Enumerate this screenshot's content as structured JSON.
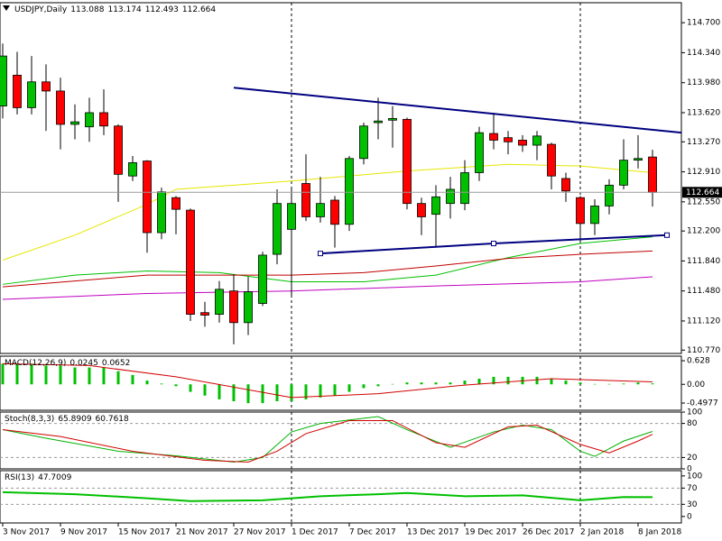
{
  "chart_data": [
    {
      "type": "candlestick",
      "title": "USDJPY,Daily",
      "categories": [
        "3 Nov 2017",
        null,
        null,
        null,
        "9 Nov 2017",
        null,
        null,
        null,
        "15 Nov 2017",
        null,
        null,
        null,
        "21 Nov 2017",
        null,
        null,
        null,
        "27 Nov 2017",
        null,
        null,
        null,
        "1 Dec 2017",
        null,
        null,
        null,
        "7 Dec 2017",
        null,
        null,
        null,
        "13 Dec 2017",
        null,
        null,
        null,
        "19 Dec 2017",
        null,
        null,
        null,
        "26 Dec 2017",
        null,
        null,
        null,
        "2 Jan 2018",
        null,
        null,
        null,
        "8 Jan 2018",
        null
      ],
      "open": [
        113.7,
        114.07,
        113.68,
        113.99,
        113.88,
        113.48,
        113.45,
        113.62,
        113.46,
        112.86,
        113.04,
        112.18,
        112.6,
        112.45,
        111.22,
        111.2,
        111.48,
        111.1,
        111.33,
        111.92,
        112.22,
        112.77,
        112.37,
        112.57,
        112.28,
        113.07,
        113.5,
        113.53,
        113.54,
        112.53,
        112.4,
        112.53,
        112.53,
        112.9,
        113.37,
        113.32,
        113.29,
        113.23,
        113.24,
        112.83,
        112.6,
        112.29,
        112.5,
        112.75,
        113.05,
        113.088
      ],
      "high": [
        114.45,
        114.35,
        114.3,
        114.2,
        114.04,
        113.72,
        113.8,
        113.9,
        113.48,
        113.1,
        113.05,
        112.72,
        112.62,
        112.47,
        111.35,
        111.6,
        111.68,
        111.65,
        111.95,
        112.7,
        112.7,
        113.12,
        112.85,
        112.62,
        113.1,
        113.5,
        113.8,
        113.7,
        113.56,
        112.6,
        112.75,
        112.85,
        113.05,
        113.45,
        113.62,
        113.4,
        113.35,
        113.4,
        113.26,
        112.9,
        112.62,
        112.58,
        112.82,
        113.3,
        113.35,
        113.174
      ],
      "low": [
        113.55,
        113.6,
        113.6,
        113.4,
        113.18,
        113.3,
        113.27,
        113.35,
        112.55,
        112.8,
        111.94,
        112.1,
        112.16,
        111.12,
        111.05,
        111.1,
        110.84,
        110.95,
        111.3,
        111.8,
        111.4,
        112.32,
        112.3,
        112.0,
        112.2,
        113.0,
        113.3,
        113.2,
        112.46,
        112.15,
        112.0,
        112.35,
        112.45,
        112.8,
        113.18,
        113.12,
        113.15,
        113.05,
        112.7,
        112.55,
        112.07,
        112.15,
        112.4,
        112.7,
        112.95,
        112.493
      ],
      "close": [
        114.3,
        113.68,
        113.99,
        113.88,
        113.48,
        113.51,
        113.62,
        113.46,
        112.88,
        113.02,
        112.18,
        112.67,
        112.46,
        111.2,
        111.19,
        111.5,
        111.1,
        111.47,
        111.91,
        112.53,
        112.53,
        112.37,
        112.53,
        112.28,
        113.07,
        113.46,
        113.52,
        113.55,
        112.53,
        112.37,
        112.61,
        112.7,
        112.9,
        113.38,
        113.29,
        113.27,
        113.23,
        113.34,
        112.86,
        112.68,
        112.29,
        112.5,
        112.75,
        113.05,
        113.07,
        112.664
      ],
      "up_color": "#00c000",
      "down_color": "#ff0000",
      "ylim": [
        110.73,
        114.94
      ],
      "yticks": [
        {
          "value": 114.7,
          "label": "114.700"
        },
        {
          "value": 114.34,
          "label": "114.340"
        },
        {
          "value": 113.98,
          "label": "113.980"
        },
        {
          "value": 113.62,
          "label": "113.620"
        },
        {
          "value": 113.27,
          "label": "113.270"
        },
        {
          "value": 112.91,
          "label": "112.910"
        },
        {
          "value": 112.55,
          "label": "112.550"
        },
        {
          "value": 112.2,
          "label": "112.200"
        },
        {
          "value": 111.84,
          "label": "111.840"
        },
        {
          "value": 111.48,
          "label": "111.480"
        },
        {
          "value": 111.12,
          "label": "111.120"
        },
        {
          "value": 110.77,
          "label": "110.770"
        }
      ],
      "period_separators": [
        20,
        40
      ],
      "lines": [
        {
          "color": "#e6e600",
          "x": [
            0,
            5,
            10,
            12,
            20,
            28,
            35,
            40,
            45
          ],
          "values": [
            111.85,
            112.15,
            112.52,
            112.7,
            112.8,
            112.92,
            113.0,
            112.98,
            112.9
          ]
        },
        {
          "color": "#00c000",
          "x": [
            0,
            5,
            10,
            15,
            20,
            25,
            30,
            35,
            40,
            45
          ],
          "values": [
            111.56,
            111.67,
            111.72,
            111.7,
            111.59,
            111.59,
            111.67,
            111.88,
            112.05,
            112.13
          ]
        },
        {
          "color": "#c00000",
          "x": [
            0,
            10,
            15,
            20,
            25,
            30,
            35,
            40,
            45
          ],
          "values": [
            111.53,
            111.67,
            111.67,
            111.67,
            111.7,
            111.78,
            111.87,
            111.92,
            111.96
          ]
        },
        {
          "color": "#c000c0",
          "x": [
            0,
            10,
            20,
            30,
            40,
            45
          ],
          "values": [
            111.38,
            111.45,
            111.48,
            111.54,
            111.59,
            111.65
          ]
        }
      ],
      "trendlines": [
        {
          "color": "#000080",
          "x": [
            16,
            47
          ],
          "values": [
            113.92,
            113.38
          ]
        },
        {
          "color": "#000080",
          "x": [
            22,
            34,
            46
          ],
          "values": [
            111.93,
            112.05,
            112.15
          ],
          "markers": true
        }
      ]
    },
    {
      "type": "bar",
      "title": "MACD(12,26,9)",
      "color": "#00c000",
      "values": [
        0.55,
        0.55,
        0.55,
        0.5,
        0.5,
        0.45,
        0.45,
        0.45,
        0.35,
        0.25,
        0.1,
        0.02,
        -0.05,
        -0.2,
        -0.3,
        -0.4,
        -0.45,
        -0.5,
        -0.5,
        -0.45,
        -0.45,
        -0.4,
        -0.35,
        -0.3,
        -0.2,
        -0.1,
        -0.05,
        0.01,
        0.05,
        0.05,
        0.05,
        0.05,
        0.1,
        0.15,
        0.2,
        0.2,
        0.2,
        0.2,
        0.15,
        0.1,
        0.05,
        0.01,
        0.01,
        0.02,
        0.05,
        0.0245
      ],
      "signal": {
        "color": "#d00000",
        "x": [
          0,
          6,
          12,
          20,
          26,
          32,
          38,
          45
        ],
        "values": [
          0.55,
          0.5,
          0.2,
          -0.35,
          -0.25,
          -0.02,
          0.15,
          0.0652
        ]
      },
      "ylim": [
        -0.69,
        0.75
      ],
      "yticks": [
        0.628,
        {
          "value": 0,
          "label": "0.00"
        },
        -0.4977
      ]
    },
    {
      "type": "line",
      "title": "Stoch(8,3,3)",
      "series": [
        {
          "color": "#00b000",
          "x": [
            0,
            3,
            8,
            12,
            16,
            18,
            20,
            22,
            26,
            28,
            31,
            34,
            36,
            38,
            40,
            41,
            43,
            45
          ],
          "values": [
            69,
            54,
            31,
            23,
            12,
            20,
            65,
            80,
            92,
            69,
            38,
            65,
            77,
            69,
            31,
            22,
            49,
            65.8909
          ]
        },
        {
          "color": "#d00000",
          "x": [
            0,
            4,
            9,
            14,
            17,
            19,
            21,
            24,
            27,
            30,
            32,
            35,
            37,
            40,
            42,
            44,
            45
          ],
          "values": [
            69,
            57,
            31,
            15,
            12,
            31,
            62,
            85,
            85,
            46,
            38,
            74,
            77,
            43,
            28,
            49,
            60.7618
          ]
        }
      ],
      "ylim": [
        0,
        100
      ],
      "yticks": [
        0,
        20,
        80,
        100
      ],
      "levels": [
        20,
        80
      ]
    },
    {
      "type": "line",
      "title": "RSI(13)",
      "series": [
        {
          "color": "#00c000",
          "x": [
            0,
            5,
            10,
            13,
            18,
            22,
            26,
            28,
            32,
            36,
            40,
            43,
            45
          ],
          "values": [
            60,
            55,
            45,
            38,
            40,
            50,
            55,
            58,
            50,
            52,
            40,
            48,
            47.7009
          ]
        }
      ],
      "ylim": [
        -16,
        113
      ],
      "yticks": [
        0,
        30,
        70,
        100
      ],
      "levels": [
        30,
        70
      ]
    }
  ]
}
